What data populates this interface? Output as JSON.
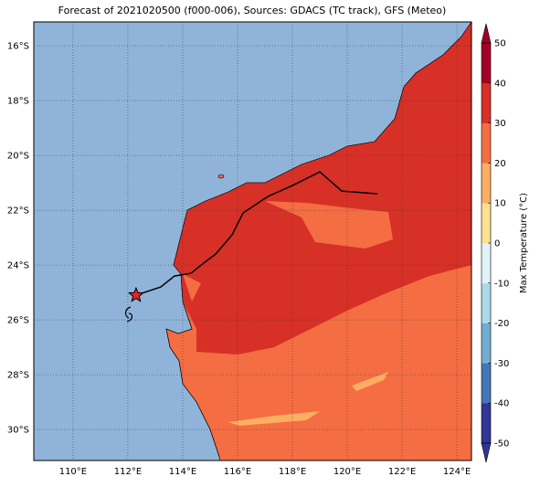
{
  "map": {
    "title": "Forecast of 2021020500 (f000-006), Sources: GDACS (TC track), GFS (Meteo)",
    "xlim": [
      108.57,
      124.53
    ],
    "ylim": [
      -31.13,
      -15.13
    ],
    "xticks": [
      {
        "value": 110,
        "label": "110°E"
      },
      {
        "value": 112,
        "label": "112°E"
      },
      {
        "value": 114,
        "label": "114°E"
      },
      {
        "value": 116,
        "label": "116°E"
      },
      {
        "value": 118,
        "label": "118°E"
      },
      {
        "value": 120,
        "label": "120°E"
      },
      {
        "value": 122,
        "label": "122°E"
      },
      {
        "value": 124,
        "label": "124°E"
      }
    ],
    "yticks": [
      {
        "value": -16,
        "label": "16°S"
      },
      {
        "value": -18,
        "label": "18°S"
      },
      {
        "value": -20,
        "label": "20°S"
      },
      {
        "value": -22,
        "label": "22°S"
      },
      {
        "value": -24,
        "label": "24°S"
      },
      {
        "value": -26,
        "label": "26°S"
      },
      {
        "value": -28,
        "label": "28°S"
      },
      {
        "value": -30,
        "label": "30°S"
      }
    ],
    "track": {
      "color": "#000000",
      "lon": [
        112.3,
        113.2,
        113.7,
        114.3,
        114.8,
        115.2,
        115.8,
        116.2,
        117.1,
        118.0,
        119.0,
        119.8,
        121.1
      ],
      "lat": [
        -25.1,
        -24.8,
        -24.4,
        -24.3,
        -23.9,
        -23.6,
        -22.9,
        -22.1,
        -21.5,
        -21.1,
        -20.6,
        -21.3,
        -21.4
      ]
    },
    "storm": {
      "lon": 112.3,
      "lat": -25.1,
      "color": "#e8251f"
    }
  },
  "colorbar": {
    "label": "Max Temperature (°C)",
    "lim": [
      -50,
      50
    ],
    "ticks": [
      -50,
      -40,
      -30,
      -20,
      -10,
      0,
      10,
      20,
      30,
      40,
      50
    ],
    "colors": [
      "#313695",
      "#4575b4",
      "#74add1",
      "#abd9e9",
      "#e0f3f8",
      "#fee090",
      "#fdae61",
      "#f46d43",
      "#d73027",
      "#a50026"
    ]
  }
}
